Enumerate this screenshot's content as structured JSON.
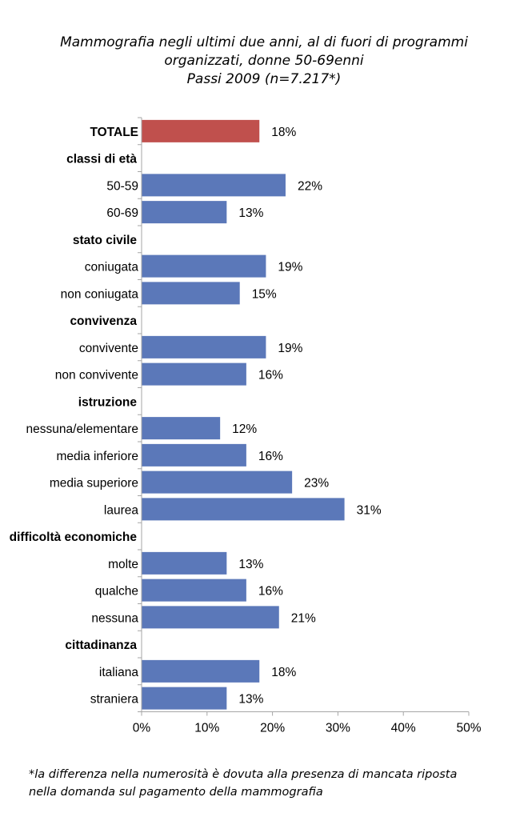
{
  "title": {
    "line1": "Mammografia negli ultimi due anni, al di fuori di programmi",
    "line2": "organizzati, donne 50-69enni",
    "line3": "Passi 2009 (n=7.217*)"
  },
  "footnote": {
    "line1": "*la differenza nella numerosità è dovuta alla presenza di mancata riposta",
    "line2": "nella domanda sul pagamento della mammografia"
  },
  "colors": {
    "total_bar": "#c0504d",
    "bar": "#5b78b9",
    "axis": "#a6a6a6",
    "text": "#000000"
  },
  "chart_data": {
    "type": "bar",
    "orientation": "horizontal",
    "xlim": [
      0,
      50
    ],
    "xticks": [
      "0%",
      "10%",
      "20%",
      "30%",
      "40%",
      "50%"
    ],
    "grid": false,
    "rows": [
      {
        "label": "TOTALE",
        "kind": "total",
        "value": 18,
        "value_label": "18%"
      },
      {
        "label": "classi di età",
        "kind": "header"
      },
      {
        "label": "50-59",
        "kind": "bar",
        "value": 22,
        "value_label": "22%"
      },
      {
        "label": "60-69",
        "kind": "bar",
        "value": 13,
        "value_label": "13%"
      },
      {
        "label": "stato civile",
        "kind": "header"
      },
      {
        "label": "coniugata",
        "kind": "bar",
        "value": 19,
        "value_label": "19%"
      },
      {
        "label": "non coniugata",
        "kind": "bar",
        "value": 15,
        "value_label": "15%"
      },
      {
        "label": "convivenza",
        "kind": "header"
      },
      {
        "label": "convivente",
        "kind": "bar",
        "value": 19,
        "value_label": "19%"
      },
      {
        "label": "non convivente",
        "kind": "bar",
        "value": 16,
        "value_label": "16%"
      },
      {
        "label": "istruzione",
        "kind": "header"
      },
      {
        "label": "nessuna/elementare",
        "kind": "bar",
        "value": 12,
        "value_label": "12%"
      },
      {
        "label": "media inferiore",
        "kind": "bar",
        "value": 16,
        "value_label": "16%"
      },
      {
        "label": "media superiore",
        "kind": "bar",
        "value": 23,
        "value_label": "23%"
      },
      {
        "label": "laurea",
        "kind": "bar",
        "value": 31,
        "value_label": "31%"
      },
      {
        "label": "difficoltà economiche",
        "kind": "header"
      },
      {
        "label": "molte",
        "kind": "bar",
        "value": 13,
        "value_label": "13%"
      },
      {
        "label": "qualche",
        "kind": "bar",
        "value": 16,
        "value_label": "16%"
      },
      {
        "label": "nessuna",
        "kind": "bar",
        "value": 21,
        "value_label": "21%"
      },
      {
        "label": "cittadinanza",
        "kind": "header"
      },
      {
        "label": "italiana",
        "kind": "bar",
        "value": 18,
        "value_label": "18%"
      },
      {
        "label": "straniera",
        "kind": "bar",
        "value": 13,
        "value_label": "13%"
      }
    ]
  }
}
